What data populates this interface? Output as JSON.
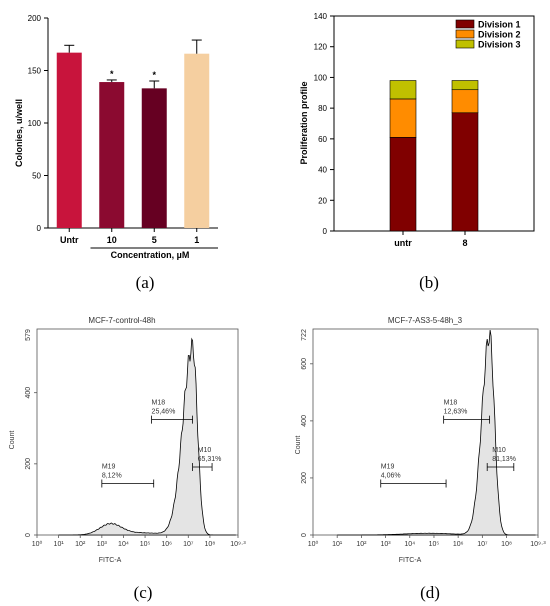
{
  "chart_data": [
    {
      "type": "bar",
      "panel_label": "(a)",
      "ylabel": "Colonies, u/well",
      "xlabel": "Concentration, µM",
      "categories": [
        "Untr",
        "10",
        "5",
        "1"
      ],
      "values": [
        167,
        139,
        133,
        166
      ],
      "errors": [
        7,
        2,
        7,
        13
      ],
      "markers": [
        "",
        "*",
        "*",
        ""
      ],
      "colors": [
        "#c8143c",
        "#8b0a30",
        "#660022",
        "#f5cfa0"
      ],
      "ylim": [
        0,
        200
      ],
      "yticks": [
        0,
        50,
        100,
        150,
        200
      ],
      "legend": "none"
    },
    {
      "type": "bar",
      "stacked": true,
      "panel_label": "(b)",
      "ylabel": "Proliferation profile",
      "categories": [
        "untr",
        "8"
      ],
      "series": [
        {
          "name": "Division 1",
          "color": "#800000",
          "values": [
            61,
            77
          ]
        },
        {
          "name": "Division 2",
          "color": "#ff8c00",
          "values": [
            25,
            15
          ]
        },
        {
          "name": "Division 3",
          "color": "#c0c000",
          "values": [
            12,
            6
          ]
        }
      ],
      "ylim": [
        0,
        140
      ],
      "yticks": [
        0,
        20,
        40,
        60,
        80,
        100,
        120,
        140
      ],
      "legend": "top-right"
    },
    {
      "type": "area",
      "panel_label": "(c)",
      "title": "MCF-7-control-48h",
      "ylabel": "Count",
      "xlabel": "FITC-A",
      "ylim": [
        0,
        579
      ],
      "yticks": [
        0,
        200,
        400
      ],
      "ytop_label": "579",
      "xticks": [
        "10⁰",
        "10¹",
        "10²",
        "10³",
        "10⁴",
        "10⁵",
        "10⁶",
        "10⁷",
        "10⁸",
        "10⁹·³"
      ],
      "xlim_log": [
        0,
        9.3
      ],
      "peak": {
        "center": 7.2,
        "height": 530,
        "left_width": 0.45,
        "right_width": 0.22
      },
      "shoulder": {
        "center": 3.4,
        "height": 30,
        "width": 0.5
      },
      "markers": [
        {
          "name": "M18",
          "value": "25,46%",
          "from": 5.3,
          "to": 7.2
        },
        {
          "name": "M19",
          "value": "8,12%",
          "from": 3.0,
          "to": 5.4
        },
        {
          "name": "M10",
          "value": "65,31%",
          "from": 7.2,
          "to": 8.1
        }
      ]
    },
    {
      "type": "area",
      "panel_label": "(d)",
      "title": "MCF-7-AS3-5-48h_3",
      "ylabel": "Count",
      "xlabel": "FITC-A",
      "ylim": [
        0,
        722
      ],
      "yticks": [
        0,
        200,
        400,
        600
      ],
      "ytop_label": "722",
      "xticks": [
        "10⁰",
        "10¹",
        "10²",
        "10³",
        "10⁴",
        "10⁵",
        "10⁶",
        "10⁷",
        "10⁸",
        "10⁹·³"
      ],
      "xlim_log": [
        0,
        9.3
      ],
      "peak": {
        "center": 7.3,
        "height": 700,
        "left_width": 0.32,
        "right_width": 0.2
      },
      "shoulder": {
        "center": 3.4,
        "height": 0,
        "width": 0.5
      },
      "markers": [
        {
          "name": "M18",
          "value": "12,63%",
          "from": 5.4,
          "to": 7.3
        },
        {
          "name": "M19",
          "value": "4,06%",
          "from": 2.8,
          "to": 5.5
        },
        {
          "name": "M10",
          "value": "81,13%",
          "from": 7.2,
          "to": 8.3
        }
      ]
    }
  ]
}
